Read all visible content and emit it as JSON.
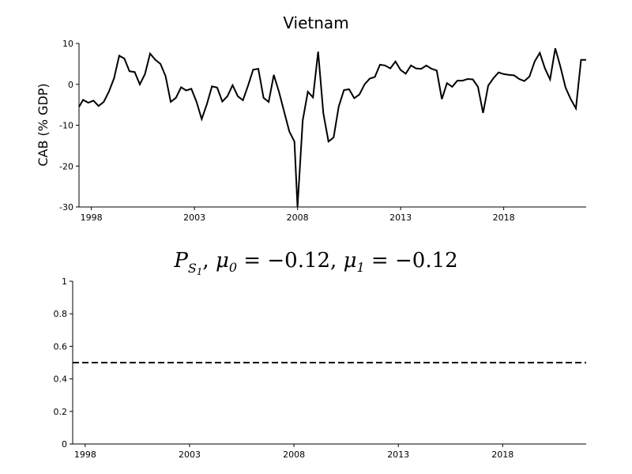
{
  "chart_data": [
    {
      "type": "line",
      "title": "Vietnam",
      "xlabel": "",
      "ylabel": "CAB (% GDP)",
      "xlim": [
        1997.4,
        2022.0
      ],
      "ylim": [
        -30,
        10
      ],
      "xticks": [
        1998,
        2003,
        2008,
        2013,
        2018
      ],
      "yticks": [
        -30,
        -20,
        -10,
        0,
        10
      ],
      "grid": false,
      "series": [
        {
          "x": [
            1997.4,
            1997.6,
            1997.85,
            1998.1,
            1998.35,
            1998.6,
            1998.85,
            1999.1,
            1999.35,
            1999.6,
            1999.85,
            2000.1,
            2000.35,
            2000.6,
            2000.85,
            2001.1,
            2001.35,
            2001.6,
            2001.85,
            2002.1,
            2002.35,
            2002.6,
            2002.85,
            2003.1,
            2003.35,
            2003.6,
            2003.85,
            2004.1,
            2004.35,
            2004.6,
            2004.85,
            2005.1,
            2005.35,
            2005.6,
            2005.85,
            2006.1,
            2006.35,
            2006.6,
            2006.85,
            2007.1,
            2007.35,
            2007.6,
            2007.85,
            2008.0,
            2008.25,
            2008.5,
            2008.75,
            2009.0,
            2009.25,
            2009.5,
            2009.75,
            2010.0,
            2010.25,
            2010.5,
            2010.75,
            2011.0,
            2011.25,
            2011.5,
            2011.75,
            2012.0,
            2012.25,
            2012.5,
            2012.75,
            2013.0,
            2013.25,
            2013.5,
            2013.75,
            2014.0,
            2014.25,
            2014.5,
            2014.75,
            2015.0,
            2015.25,
            2015.5,
            2015.75,
            2016.0,
            2016.25,
            2016.5,
            2016.75,
            2017.0,
            2017.25,
            2017.5,
            2017.75,
            2018.0,
            2018.25,
            2018.5,
            2018.75,
            2019.0,
            2019.25,
            2019.5,
            2019.75,
            2020.0,
            2020.25,
            2020.5,
            2020.75,
            2021.0,
            2021.25,
            2021.5,
            2021.75,
            2022.0
          ],
          "values": [
            -5.5,
            -3.8,
            -4.5,
            -4.0,
            -5.3,
            -4.3,
            -1.8,
            1.5,
            7.0,
            6.3,
            3.2,
            3.0,
            0.0,
            2.5,
            7.5,
            6.0,
            5.0,
            2.0,
            -4.3,
            -3.3,
            -0.7,
            -1.5,
            -1.1,
            -4.3,
            -8.5,
            -4.9,
            -0.5,
            -0.8,
            -4.2,
            -2.9,
            -0.2,
            -2.9,
            -3.9,
            -0.3,
            3.6,
            3.8,
            -3.3,
            -4.3,
            2.3,
            -1.8,
            -6.7,
            -11.5,
            -14.0,
            -30.0,
            -8.8,
            -1.8,
            -3.2,
            8.0,
            -7.1,
            -14.0,
            -13.0,
            -5.4,
            -1.4,
            -1.2,
            -3.4,
            -2.5,
            0.0,
            1.4,
            1.8,
            4.8,
            4.6,
            3.9,
            5.6,
            3.5,
            2.6,
            4.6,
            3.9,
            3.8,
            4.6,
            3.8,
            3.4,
            -3.6,
            0.3,
            -0.6,
            0.9,
            0.9,
            1.3,
            1.2,
            -0.6,
            -7.0,
            -0.3,
            1.5,
            2.9,
            2.5,
            2.3,
            2.2,
            1.3,
            0.8,
            1.9,
            5.6,
            7.7,
            3.9,
            1.2,
            8.8,
            4.3,
            -0.8,
            -3.6,
            -5.9,
            6.0,
            6.0
          ]
        }
      ]
    },
    {
      "type": "line",
      "title": "P_{S_1}, μ_0 = −0.12, μ_1 = −0.12",
      "title_parts": {
        "p": "P",
        "s": "S",
        "s_sub": "1",
        "mu0": "μ",
        "mu0_sub": "0",
        "mu0_val": " = −0.12, ",
        "mu1": "μ",
        "mu1_sub": "1",
        "mu1_val": " = −0.12",
        "sep": ", "
      },
      "xlabel": "",
      "ylabel": "",
      "xlim": [
        1997.4,
        2022.0
      ],
      "ylim": [
        0,
        1
      ],
      "xticks": [
        1998,
        2003,
        2008,
        2013,
        2018
      ],
      "yticks": [
        0,
        0.2,
        0.4,
        0.6,
        0.8,
        1
      ],
      "ytick_labels": [
        "0",
        "0.2",
        "0.4",
        "0.6",
        "0.8",
        "1"
      ],
      "grid": false,
      "series": [
        {
          "style": "dashed",
          "x": [
            1997.4,
            2022.0
          ],
          "values": [
            0.5,
            0.5
          ]
        }
      ]
    }
  ]
}
